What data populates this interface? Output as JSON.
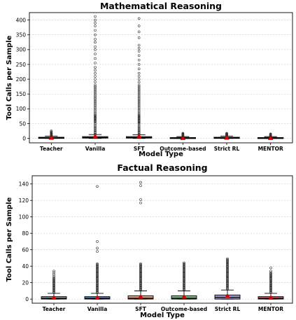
{
  "chart_data": [
    {
      "type": "box",
      "title": "Mathematical Reasoning",
      "xlabel": "Model Type",
      "ylabel": "Tool Calls per Sample",
      "ylim": [
        -15,
        425
      ],
      "yticks": [
        0,
        50,
        100,
        150,
        200,
        250,
        300,
        350,
        400
      ],
      "grid": "horizontal-dashed",
      "categories": [
        "Teacher",
        "Vanilla",
        "SFT",
        "Outcome-based",
        "Strict RL",
        "MENTOR"
      ],
      "boxes": [
        {
          "q1": 0,
          "median": 2,
          "q3": 4,
          "whisker_low": 0,
          "whisker_high": 8,
          "mean": 3,
          "color": "#888888",
          "outliers": [
            9,
            10,
            11,
            12,
            13,
            14,
            15,
            16,
            17,
            18,
            20,
            22,
            25
          ]
        },
        {
          "q1": 1,
          "median": 3,
          "q3": 6,
          "whisker_low": 0,
          "whisker_high": 13,
          "mean": 8,
          "color": "#4c72b0",
          "outliers": [
            14,
            17,
            20,
            24,
            28,
            32,
            36,
            40,
            45,
            50,
            55,
            58,
            60,
            62,
            65,
            68,
            70,
            72,
            75,
            78,
            80,
            85,
            90,
            95,
            100,
            105,
            110,
            115,
            120,
            125,
            130,
            135,
            140,
            145,
            150,
            155,
            160,
            165,
            170,
            175,
            180,
            190,
            200,
            210,
            220,
            230,
            240,
            255,
            270,
            285,
            300,
            310,
            325,
            335,
            350,
            365,
            380,
            390,
            400,
            412
          ]
        },
        {
          "q1": 1,
          "median": 3,
          "q3": 6,
          "whisker_low": 0,
          "whisker_high": 12,
          "mean": 8,
          "color": "#dd8452",
          "outliers": [
            14,
            17,
            20,
            24,
            28,
            32,
            36,
            40,
            45,
            50,
            52,
            55,
            58,
            60,
            62,
            65,
            68,
            70,
            72,
            75,
            78,
            80,
            85,
            90,
            95,
            100,
            105,
            110,
            115,
            120,
            125,
            130,
            135,
            140,
            145,
            150,
            155,
            160,
            165,
            170,
            175,
            180,
            190,
            200,
            210,
            220,
            235,
            250,
            265,
            280,
            295,
            305,
            315,
            340,
            360,
            380,
            405
          ]
        },
        {
          "q1": 0,
          "median": 1,
          "q3": 3,
          "whisker_low": 0,
          "whisker_high": 6,
          "mean": 2,
          "color": "#55a868",
          "outliers": [
            7,
            8,
            9,
            10,
            11,
            12,
            13,
            14,
            15,
            16,
            17
          ]
        },
        {
          "q1": 0,
          "median": 2,
          "q3": 4,
          "whisker_low": 0,
          "whisker_high": 8,
          "mean": 3,
          "color": "#8172b3",
          "outliers": [
            9,
            10,
            11,
            12,
            13,
            14,
            15,
            16,
            17
          ]
        },
        {
          "q1": 0,
          "median": 1,
          "q3": 3,
          "whisker_low": 0,
          "whisker_high": 6,
          "mean": 2,
          "color": "#c44e52",
          "outliers": [
            7,
            8,
            9,
            10,
            11,
            12,
            13,
            14,
            15
          ]
        }
      ]
    },
    {
      "type": "box",
      "title": "Factual Reasoning",
      "xlabel": "Model Type",
      "ylabel": "Tool Calls per Sample",
      "ylim": [
        -5,
        150
      ],
      "yticks": [
        0,
        20,
        40,
        60,
        80,
        100,
        120,
        140
      ],
      "grid": "horizontal-dashed",
      "categories": [
        "Teacher",
        "Vanilla",
        "SFT",
        "Outcome-based",
        "Strict RL",
        "MENTOR"
      ],
      "boxes": [
        {
          "q1": 0,
          "median": 1,
          "q3": 3,
          "whisker_low": 0,
          "whisker_high": 7,
          "mean": 2,
          "color": "#888888",
          "outliers": [
            8,
            9,
            10,
            11,
            12,
            13,
            14,
            15,
            16,
            17,
            18,
            19,
            20,
            21,
            22,
            23,
            24,
            25,
            26,
            28,
            30,
            32,
            34
          ]
        },
        {
          "q1": 0,
          "median": 1,
          "q3": 3,
          "whisker_low": 0,
          "whisker_high": 7,
          "mean": 2,
          "color": "#4c72b0",
          "outliers": [
            8,
            9,
            10,
            11,
            12,
            13,
            14,
            15,
            16,
            17,
            18,
            19,
            20,
            21,
            22,
            23,
            24,
            25,
            26,
            27,
            28,
            29,
            30,
            31,
            32,
            33,
            34,
            35,
            36,
            37,
            38,
            39,
            40,
            41,
            42,
            43,
            58,
            62,
            70,
            137
          ]
        },
        {
          "q1": 0,
          "median": 1,
          "q3": 4,
          "whisker_low": 0,
          "whisker_high": 10,
          "mean": 3,
          "color": "#dd8452",
          "outliers": [
            11,
            12,
            13,
            14,
            15,
            16,
            17,
            18,
            19,
            20,
            21,
            22,
            23,
            24,
            25,
            26,
            27,
            28,
            29,
            30,
            31,
            32,
            33,
            34,
            35,
            36,
            37,
            38,
            39,
            40,
            41,
            42,
            43,
            117,
            121,
            138,
            142
          ]
        },
        {
          "q1": 0,
          "median": 1,
          "q3": 4,
          "whisker_low": 0,
          "whisker_high": 10,
          "mean": 3,
          "color": "#55a868",
          "outliers": [
            11,
            12,
            13,
            14,
            15,
            16,
            17,
            18,
            19,
            20,
            21,
            22,
            23,
            24,
            25,
            26,
            27,
            28,
            29,
            30,
            31,
            32,
            33,
            34,
            35,
            36,
            37,
            38,
            39,
            40,
            41,
            42,
            43,
            44
          ]
        },
        {
          "q1": 0,
          "median": 2,
          "q3": 5,
          "whisker_low": 0,
          "whisker_high": 11,
          "mean": 4,
          "color": "#8172b3",
          "outliers": [
            12,
            13,
            14,
            15,
            16,
            17,
            18,
            19,
            20,
            21,
            22,
            23,
            24,
            25,
            26,
            27,
            28,
            29,
            30,
            31,
            32,
            33,
            34,
            35,
            36,
            37,
            38,
            39,
            40,
            41,
            42,
            43,
            44,
            45,
            46,
            47,
            48,
            49
          ]
        },
        {
          "q1": 0,
          "median": 1,
          "q3": 3,
          "whisker_low": 0,
          "whisker_high": 7,
          "mean": 2,
          "color": "#c44e52",
          "outliers": [
            8,
            9,
            10,
            11,
            12,
            13,
            14,
            15,
            16,
            17,
            18,
            19,
            20,
            21,
            22,
            23,
            24,
            25,
            26,
            27,
            28,
            29,
            30,
            31,
            32,
            34,
            38
          ]
        }
      ]
    }
  ]
}
